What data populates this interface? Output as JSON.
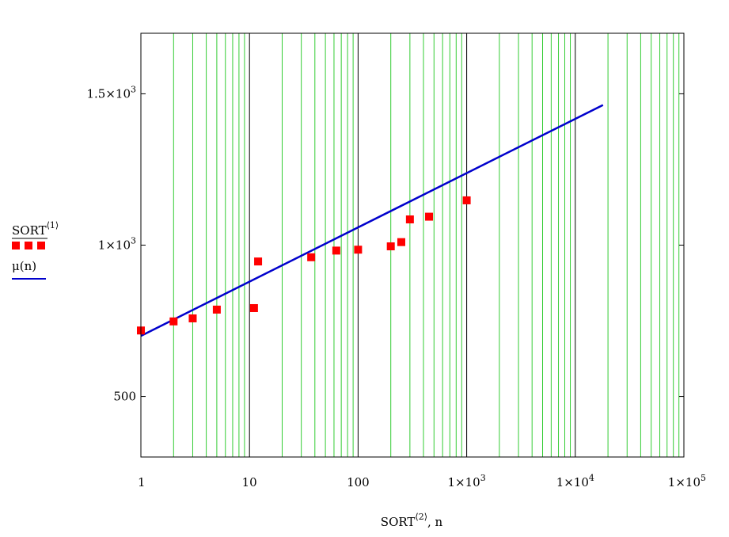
{
  "chart_data": {
    "type": "scatter",
    "x_scale": "log",
    "xlim": [
      1,
      100000
    ],
    "ylim": [
      300,
      1700
    ],
    "x_ticks": [
      {
        "value": 1,
        "base": "1",
        "exp": ""
      },
      {
        "value": 10,
        "base": "10",
        "exp": ""
      },
      {
        "value": 100,
        "base": "100",
        "exp": ""
      },
      {
        "value": 1000,
        "base": "1×10",
        "exp": "3"
      },
      {
        "value": 10000,
        "base": "1×10",
        "exp": "4"
      },
      {
        "value": 100000,
        "base": "1×10",
        "exp": "5"
      }
    ],
    "y_ticks": [
      {
        "value": 500,
        "base": "500",
        "exp": ""
      },
      {
        "value": 1000,
        "base": "1×10",
        "exp": "3"
      },
      {
        "value": 1500,
        "base": "1.5×10",
        "exp": "3"
      }
    ],
    "xlabel": {
      "main": "SORT",
      "sup": "⟨2⟩",
      "suffix": ", n"
    },
    "grid": {
      "x_minor": true,
      "x_major": true,
      "minor_color": "#33cc33",
      "major_color": "#000000"
    },
    "series": [
      {
        "name": {
          "main": "SORT",
          "sup": "⟨1⟩"
        },
        "kind": "markers",
        "color": "#ff0000",
        "points": [
          {
            "x": 1,
            "y": 718
          },
          {
            "x": 2,
            "y": 748
          },
          {
            "x": 3,
            "y": 758
          },
          {
            "x": 5,
            "y": 787
          },
          {
            "x": 11,
            "y": 792
          },
          {
            "x": 12,
            "y": 946
          },
          {
            "x": 37,
            "y": 960
          },
          {
            "x": 63,
            "y": 982
          },
          {
            "x": 100,
            "y": 985
          },
          {
            "x": 200,
            "y": 996
          },
          {
            "x": 250,
            "y": 1010
          },
          {
            "x": 300,
            "y": 1085
          },
          {
            "x": 450,
            "y": 1094
          },
          {
            "x": 1000,
            "y": 1148
          }
        ]
      },
      {
        "name": {
          "main": "μ(n)",
          "sup": ""
        },
        "kind": "line",
        "color": "#0000cc",
        "points": [
          {
            "x": 1,
            "y": 700
          },
          {
            "x": 18000,
            "y": 1463
          }
        ]
      }
    ],
    "legend": "left"
  }
}
